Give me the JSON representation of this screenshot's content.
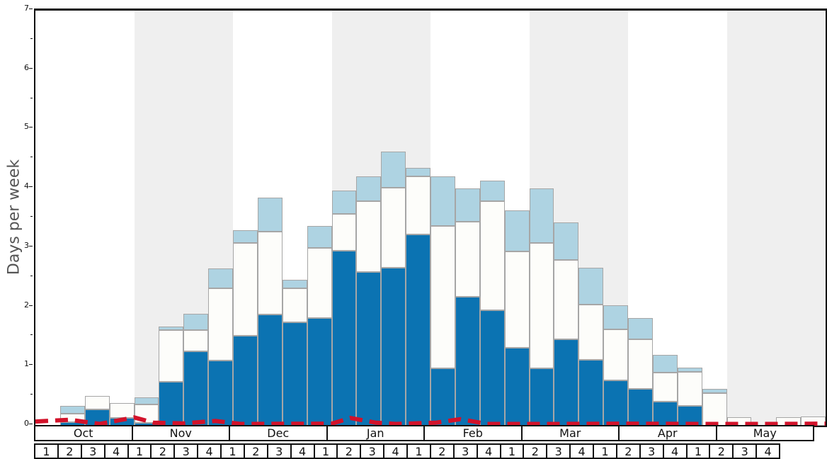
{
  "chart_data": {
    "type": "bar",
    "subtype": "stacked-weekly-snowfall",
    "ylabel": "Days per week",
    "ylim": [
      0,
      7
    ],
    "y_ticks": [
      0,
      1,
      2,
      3,
      4,
      5,
      6,
      7
    ],
    "y_minor_step": 0.5,
    "grid": false,
    "months": [
      "Oct",
      "Nov",
      "Dec",
      "Jan",
      "Feb",
      "Mar",
      "Apr",
      "May"
    ],
    "week_labels": [
      "1",
      "2",
      "3",
      "4"
    ],
    "categories": [
      "Oct w1",
      "Oct w2",
      "Oct w3",
      "Oct w4",
      "Nov w1",
      "Nov w2",
      "Nov w3",
      "Nov w4",
      "Dec w1",
      "Dec w2",
      "Dec w3",
      "Dec w4",
      "Jan w1",
      "Jan w2",
      "Jan w3",
      "Jan w4",
      "Feb w1",
      "Feb w2",
      "Feb w3",
      "Feb w4",
      "Mar w1",
      "Mar w2",
      "Mar w3",
      "Mar w4",
      "Apr w1",
      "Apr w2",
      "Apr w3",
      "Apr w4",
      "May w1",
      "May w2",
      "May w3",
      "May w4"
    ],
    "series": [
      {
        "name": "dark-blue-segment",
        "color_key": "dark_blue",
        "cumulative_top": [
          0,
          0.06,
          0.27,
          0.13,
          0.05,
          0.74,
          1.25,
          1.1,
          1.52,
          1.88,
          1.74,
          1.81,
          2.95,
          2.59,
          2.66,
          3.22,
          0.97,
          2.17,
          1.95,
          1.31,
          0.97,
          1.46,
          1.11,
          0.76,
          0.62,
          0.41,
          0.34,
          0,
          0,
          0,
          0,
          0
        ]
      },
      {
        "name": "white-segment",
        "color_key": "white",
        "cumulative_top": [
          0,
          0.2,
          0.5,
          0.38,
          0.36,
          1.61,
          1.61,
          2.32,
          3.08,
          3.27,
          2.32,
          3.0,
          3.57,
          3.79,
          4.01,
          4.21,
          3.37,
          3.44,
          3.79,
          2.94,
          3.08,
          2.8,
          2.04,
          1.63,
          1.46,
          0.9,
          0.91,
          0.55,
          0.14,
          0,
          0.14,
          0.15
        ]
      },
      {
        "name": "light-blue-segment",
        "color_key": "light_blue",
        "cumulative_top": [
          0,
          0.33,
          0.5,
          0.38,
          0.48,
          1.67,
          1.89,
          2.65,
          3.3,
          3.85,
          2.46,
          3.37,
          3.97,
          4.2,
          4.62,
          4.35,
          4.2,
          4.0,
          4.13,
          3.63,
          4.0,
          3.43,
          2.66,
          2.03,
          1.82,
          1.19,
          0.98,
          0.62,
          0.14,
          0,
          0.14,
          0.15
        ]
      }
    ],
    "average_line": {
      "style": "dashed",
      "color_key": "red_line",
      "points_week_units": [
        [
          0,
          0.07
        ],
        [
          1.4,
          0.1
        ],
        [
          2.6,
          0.03
        ],
        [
          4.0,
          0.14
        ],
        [
          4.8,
          0.05
        ],
        [
          6.0,
          0.04
        ],
        [
          7.3,
          0.08
        ],
        [
          8.3,
          0.03
        ],
        [
          12.0,
          0.035
        ],
        [
          12.75,
          0.13
        ],
        [
          13.8,
          0.05
        ],
        [
          14.6,
          0.03
        ],
        [
          16.2,
          0.05
        ],
        [
          17.2,
          0.11
        ],
        [
          18.3,
          0.03
        ],
        [
          21.0,
          0.03
        ],
        [
          24.0,
          0.035
        ],
        [
          27.0,
          0.03
        ],
        [
          30.0,
          0.03
        ],
        [
          32.0,
          0.035
        ]
      ]
    },
    "background_bands": {
      "shaded_months": [
        "Nov",
        "Jan",
        "Mar",
        "May"
      ],
      "shade_color": "#efefef"
    },
    "colors": {
      "dark_blue": "#0b73b2",
      "white": "#fdfdfa",
      "light_blue": "#aed3e2",
      "bar_border": "#a6a6a6",
      "red_line": "#d2122a",
      "frame": "#111111",
      "band_gray": "#efefef",
      "ylabel_gray": "#555555"
    }
  }
}
